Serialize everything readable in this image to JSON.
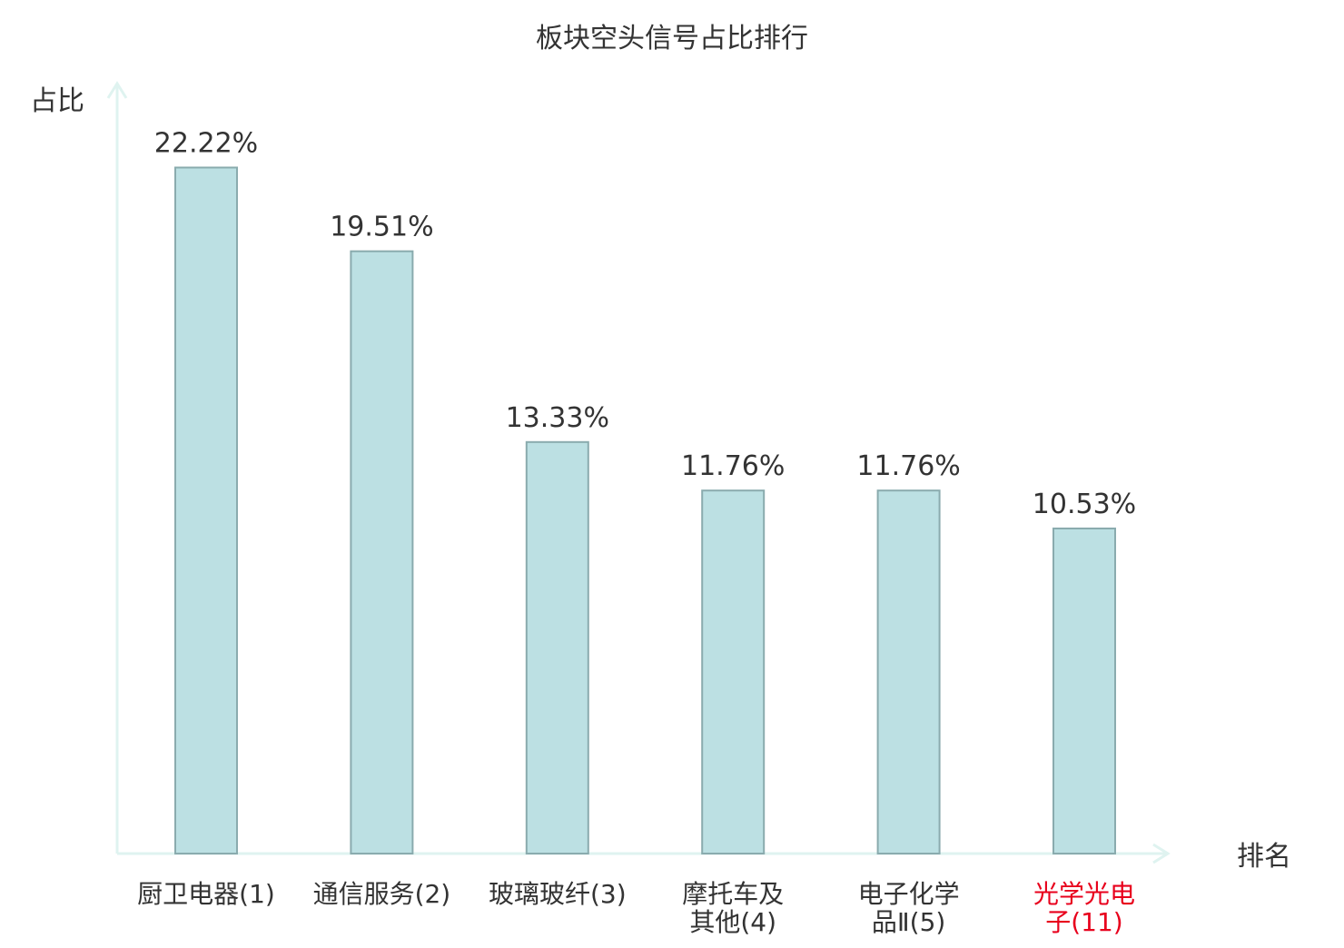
{
  "chart_data": {
    "type": "bar",
    "title": "板块空头信号占比排行",
    "ylabel": "占比",
    "xlabel": "排名",
    "categories": [
      {
        "lines": [
          "厨卫电器(1)"
        ],
        "highlight": false
      },
      {
        "lines": [
          "通信服务(2)"
        ],
        "highlight": false
      },
      {
        "lines": [
          "玻璃玻纤(3)"
        ],
        "highlight": false
      },
      {
        "lines": [
          "摩托车及",
          "其他(4)"
        ],
        "highlight": false
      },
      {
        "lines": [
          "电子化学",
          "品Ⅱ(5)"
        ],
        "highlight": false
      },
      {
        "lines": [
          "光学光电",
          "子(11)"
        ],
        "highlight": true
      }
    ],
    "values": [
      22.22,
      19.51,
      13.33,
      11.76,
      11.76,
      10.53
    ],
    "value_labels": [
      "22.22%",
      "19.51%",
      "13.33%",
      "11.76%",
      "11.76%",
      "10.53%"
    ],
    "ylim": [
      0,
      25
    ],
    "grid": false,
    "colors": {
      "bar_fill": "#bce0e3",
      "bar_stroke": "#8aabae",
      "axis": "#dff3f0",
      "text": "#333333",
      "highlight": "#e8001c"
    }
  }
}
